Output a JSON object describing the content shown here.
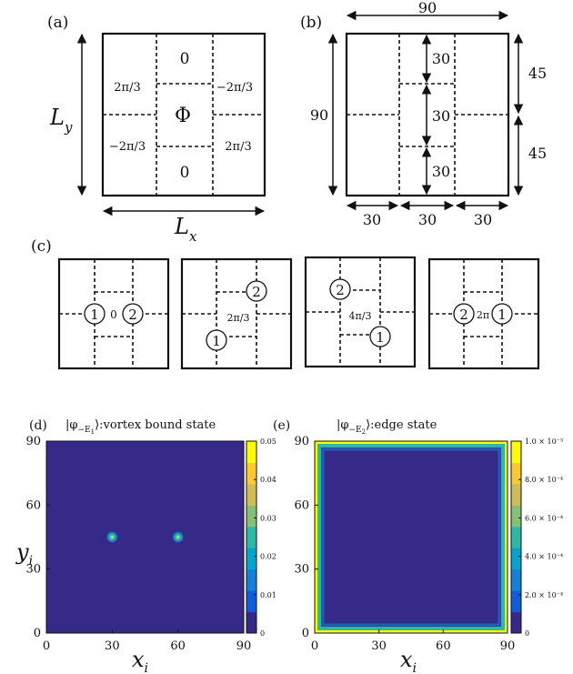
{
  "figure": {
    "panel_a": {
      "label": "(a)",
      "center": "Φ",
      "zero_top": "0",
      "zero_bottom": "0",
      "left_top": "2π/3",
      "right_top": "−2π/3",
      "left_bottom": "−2π/3",
      "right_bottom": "2π/3",
      "ly": "L",
      "ly_sub": "y",
      "lx": "L",
      "lx_sub": "x"
    },
    "panel_b": {
      "label": "(b)",
      "top": "90",
      "left": "90",
      "right_upper": "45",
      "right_lower": "45",
      "inner": [
        "30",
        "30",
        "30"
      ],
      "bottom": [
        "30",
        "30",
        "30"
      ]
    },
    "panel_c": {
      "label": "(c)",
      "boxes": [
        {
          "c1": "1",
          "c2": "2",
          "phase": "0"
        },
        {
          "c1": "1",
          "c2": "2",
          "phase": "2π/3"
        },
        {
          "c1": "2",
          "c2": "1",
          "phase": "4π/3"
        },
        {
          "c1": "2",
          "c2": "1",
          "phase": "2π"
        }
      ]
    }
  },
  "chart_data": [
    {
      "type": "heatmap",
      "panel_label": "(d)",
      "title": "|φ−E1⟩:vortex bound state",
      "title_prefix": "|φ",
      "title_sub": "−E",
      "title_subsub": "1",
      "title_suffix": "⟩:vortex bound state",
      "xlabel": "x",
      "xlabel_sub": "i",
      "ylabel": "y",
      "ylabel_sub": "i",
      "xlim": [
        0,
        90
      ],
      "ylim": [
        0,
        90
      ],
      "xticks": [
        "0",
        "30",
        "60",
        "90"
      ],
      "yticks": [
        "0",
        "30",
        "60",
        "90"
      ],
      "background_value": 0,
      "peaks": [
        {
          "x": 30,
          "y": 45,
          "value": 0.05
        },
        {
          "x": 60,
          "y": 45,
          "value": 0.05
        }
      ],
      "colorbar": {
        "range": [
          0,
          0.05
        ],
        "ticks": [
          "0",
          "0.01",
          "0.02",
          "0.03",
          "0.04",
          "0.05"
        ]
      }
    },
    {
      "type": "heatmap",
      "panel_label": "(e)",
      "title": "|φ−E2⟩:edge state",
      "title_prefix": "|φ",
      "title_sub": "−E",
      "title_subsub": "2",
      "title_suffix": "⟩:edge state",
      "xlabel": "x",
      "xlabel_sub": "i",
      "xlim": [
        0,
        90
      ],
      "ylim": [
        0,
        90
      ],
      "xticks": [
        "0",
        "30",
        "60",
        "90"
      ],
      "yticks": [
        "0",
        "30",
        "60",
        "90"
      ],
      "background_value": 0,
      "edge_value": 0.001,
      "colorbar": {
        "range": [
          0,
          0.001
        ],
        "ticks": [
          "0",
          "2.0 × 10⁻⁴",
          "4.0 × 10⁻⁴",
          "6.0 × 10⁻⁴",
          "8.0 × 10⁻⁴",
          "1.0 × 10⁻³"
        ]
      }
    }
  ],
  "colors": {
    "low": "#352a87",
    "colormap": [
      "#352a87",
      "#0f5cdd",
      "#1481d6",
      "#06a4ca",
      "#2eb7a4",
      "#87bf77",
      "#d1bb59",
      "#fec832",
      "#f9fb0e"
    ]
  }
}
